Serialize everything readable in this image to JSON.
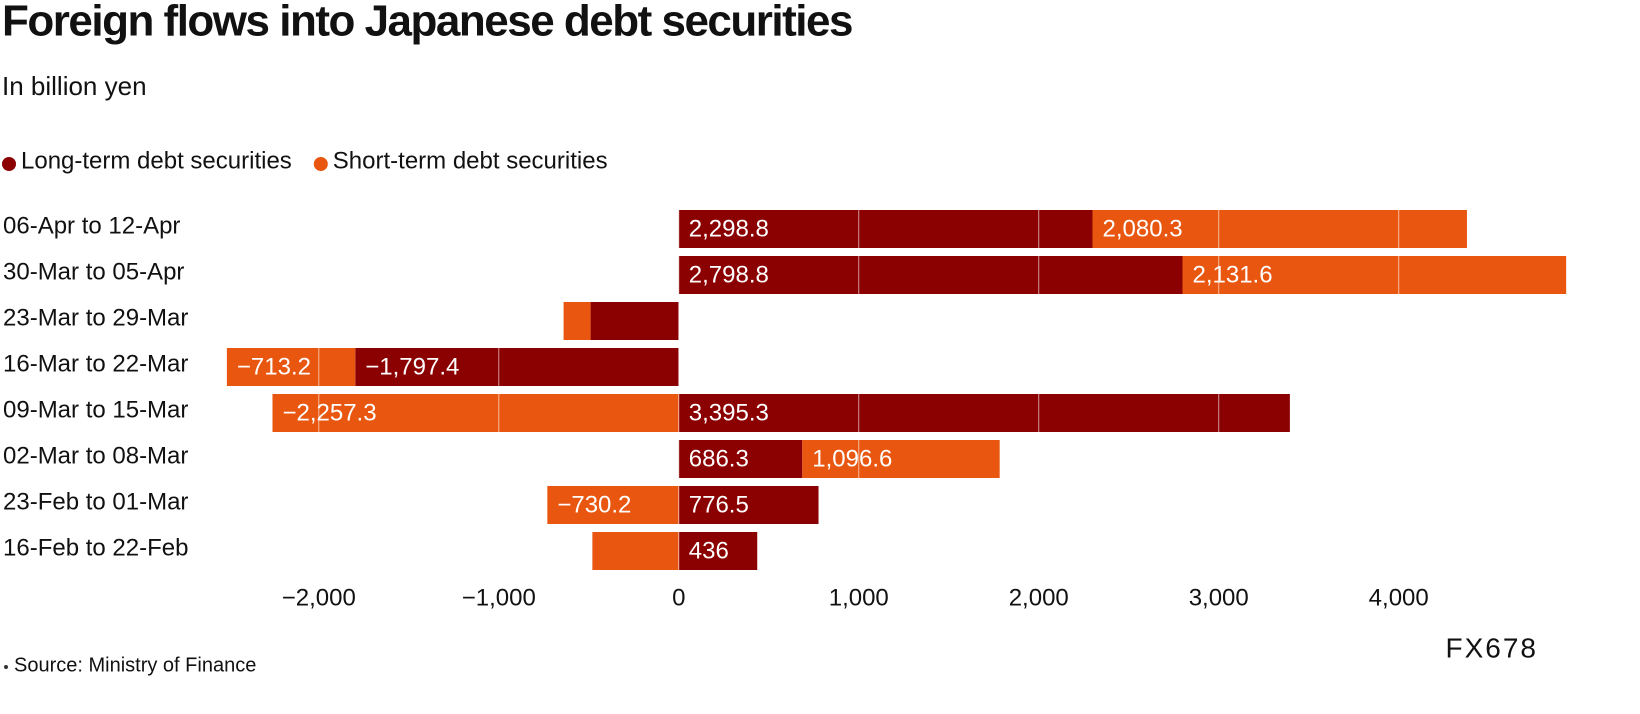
{
  "chart_data": {
    "type": "diverging-stacked-bar",
    "title": "Foreign flows into Japanese debt securities",
    "subtitle": "In billion yen",
    "source": "Source: Ministry of Finance",
    "watermark": "FX678",
    "categories": [
      "06-Apr to 12-Apr",
      "30-Mar to 05-Apr",
      "23-Mar to 29-Mar",
      "16-Mar to 22-Mar",
      "09-Mar to 15-Mar",
      "02-Mar to 08-Mar",
      "23-Feb to 01-Mar",
      "16-Feb to 22-Feb"
    ],
    "series": [
      {
        "name": "Long-term debt securities",
        "color": "#8b0000",
        "values": [
          2298.8,
          2798.8,
          -490,
          -1797.4,
          3395.3,
          686.3,
          776.5,
          436
        ],
        "value_labels": [
          "2,298.8",
          "2,798.8",
          null,
          "−1,797.4",
          "3,395.3",
          "686.3",
          "776.5",
          "436"
        ]
      },
      {
        "name": "Short-term debt securities",
        "color": "#e8560f",
        "values": [
          2080.3,
          2131.6,
          -150,
          -713.2,
          -2257.3,
          1096.6,
          -730.2,
          -480
        ],
        "value_labels": [
          "2,080.3",
          "2,131.6",
          null,
          "−713.2",
          "−2,257.3",
          "1,096.6",
          "−730.2",
          null
        ]
      }
    ],
    "xlim": [
      -2510,
      4935
    ],
    "xticks": [
      {
        "value": -2000,
        "label": "−2,000"
      },
      {
        "value": -1000,
        "label": "−1,000"
      },
      0,
      {
        "value": 1000,
        "label": "1,000"
      },
      {
        "value": 2000,
        "label": "2,000"
      },
      {
        "value": 3000,
        "label": "3,000"
      },
      {
        "value": 4000,
        "label": "4,000"
      }
    ],
    "grid": true
  }
}
